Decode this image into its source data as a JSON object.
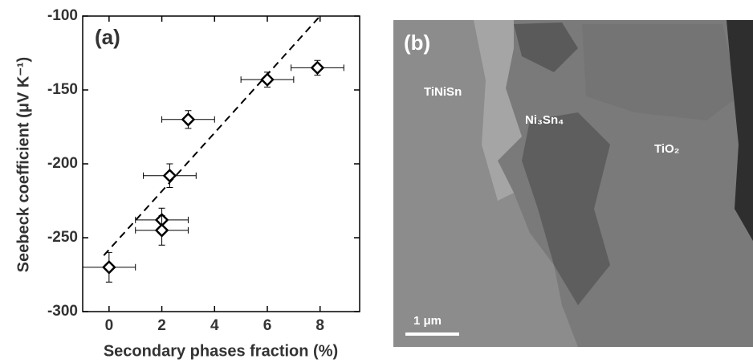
{
  "chart_data": {
    "type": "scatter",
    "panel_label": "(a)",
    "xlabel": "Secondary phases fraction (%)",
    "ylabel": "Seebeck coefficient (μV K⁻¹)",
    "xlim": [
      -1,
      9.5
    ],
    "ylim": [
      -300,
      -100
    ],
    "xticks": [
      0,
      2,
      4,
      6,
      8
    ],
    "yticks": [
      -300,
      -250,
      -200,
      -150,
      -100
    ],
    "series": [
      {
        "color": "#000000",
        "x": [
          0,
          2,
          2,
          2.3,
          3,
          6,
          7.9
        ],
        "y": [
          -270,
          -238,
          -245,
          -208,
          -170,
          -143,
          -135
        ],
        "xerr": [
          1,
          1,
          1,
          1,
          1,
          1,
          1
        ],
        "yerr": [
          10,
          8,
          10,
          8,
          6,
          5,
          5
        ]
      }
    ],
    "trendline": {
      "x": [
        -0.2,
        8
      ],
      "y": [
        -262,
        -100
      ],
      "color": "#000000",
      "dashed": true
    }
  },
  "image_panel": {
    "panel_label": "(b)",
    "labels": [
      "TiNiSn",
      "Ni₃Sn₄",
      "TiO₂"
    ],
    "scale_bar": "1 μm"
  }
}
